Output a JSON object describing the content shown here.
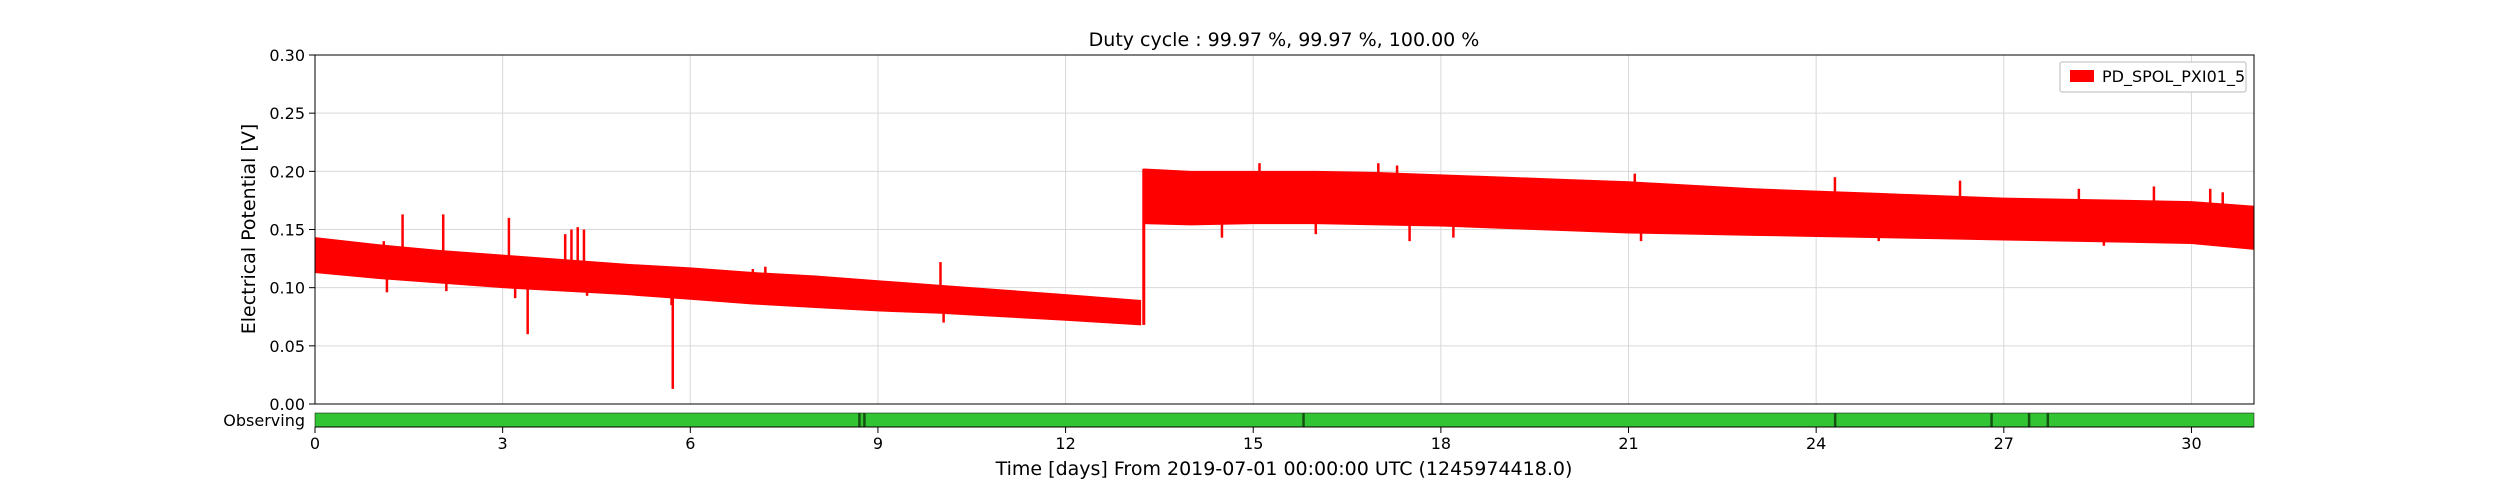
{
  "chart_data": {
    "type": "area",
    "title": "Duty cycle : 99.97 %, 99.97 %, 100.00 %",
    "xlabel": "Time [days] From 2019-07-01 00:00:00 UTC (1245974418.0)",
    "ylabel": "Electrical Potential [V]",
    "xlim": [
      0,
      31
    ],
    "ylim": [
      0,
      0.3
    ],
    "x_ticks": [
      0,
      3,
      6,
      9,
      12,
      15,
      18,
      21,
      24,
      27,
      30
    ],
    "x_tick_labels": [
      "0",
      "3",
      "6",
      "9",
      "12",
      "15",
      "18",
      "21",
      "24",
      "27",
      "30"
    ],
    "y_ticks": [
      0,
      0.05,
      0.1,
      0.15,
      0.2,
      0.25,
      0.3
    ],
    "y_tick_labels": [
      "0.00",
      "0.05",
      "0.10",
      "0.15",
      "0.20",
      "0.25",
      "0.30"
    ],
    "grid": true,
    "legend_position": "top-right",
    "series": [
      {
        "name": "PD_SPOL_PXI01_5",
        "color": "#ff0000",
        "x": [
          0,
          1,
          2,
          3,
          4,
          5,
          6,
          7,
          8,
          9,
          10,
          11,
          12,
          13.2,
          13.25,
          14,
          15,
          16,
          17,
          18,
          19,
          20,
          21,
          22,
          23,
          24,
          25,
          26,
          27,
          28,
          29,
          30,
          31
        ],
        "y_low": [
          0.113,
          0.108,
          0.104,
          0.1,
          0.097,
          0.094,
          0.09,
          0.086,
          0.083,
          0.08,
          0.078,
          0.075,
          0.072,
          0.068,
          0.155,
          0.154,
          0.155,
          0.155,
          0.154,
          0.153,
          0.151,
          0.149,
          0.147,
          0.146,
          0.145,
          0.144,
          0.143,
          0.142,
          0.141,
          0.14,
          0.139,
          0.138,
          0.133
        ],
        "y_high": [
          0.143,
          0.137,
          0.132,
          0.128,
          0.124,
          0.12,
          0.117,
          0.113,
          0.11,
          0.106,
          0.102,
          0.098,
          0.094,
          0.089,
          0.202,
          0.2,
          0.2,
          0.2,
          0.199,
          0.197,
          0.195,
          0.193,
          0.191,
          0.188,
          0.185,
          0.183,
          0.181,
          0.179,
          0.177,
          0.176,
          0.175,
          0.174,
          0.17
        ],
        "spikes": [
          {
            "x": 1.1,
            "y": 0.14
          },
          {
            "x": 1.15,
            "y": 0.096
          },
          {
            "x": 1.4,
            "y": 0.163
          },
          {
            "x": 2.05,
            "y": 0.163
          },
          {
            "x": 2.1,
            "y": 0.097
          },
          {
            "x": 3.1,
            "y": 0.16
          },
          {
            "x": 3.2,
            "y": 0.091
          },
          {
            "x": 3.4,
            "y": 0.06
          },
          {
            "x": 4.0,
            "y": 0.146
          },
          {
            "x": 4.1,
            "y": 0.15
          },
          {
            "x": 4.2,
            "y": 0.152
          },
          {
            "x": 4.3,
            "y": 0.15
          },
          {
            "x": 4.35,
            "y": 0.093
          },
          {
            "x": 5.7,
            "y": 0.085
          },
          {
            "x": 5.72,
            "y": 0.013
          },
          {
            "x": 6.1,
            "y": 0.098
          },
          {
            "x": 7.0,
            "y": 0.116
          },
          {
            "x": 7.2,
            "y": 0.118
          },
          {
            "x": 10.0,
            "y": 0.122
          },
          {
            "x": 10.05,
            "y": 0.07
          },
          {
            "x": 13.25,
            "y": 0.083
          },
          {
            "x": 14.5,
            "y": 0.143
          },
          {
            "x": 15.1,
            "y": 0.207
          },
          {
            "x": 16.0,
            "y": 0.146
          },
          {
            "x": 17.0,
            "y": 0.207
          },
          {
            "x": 17.3,
            "y": 0.205
          },
          {
            "x": 17.5,
            "y": 0.14
          },
          {
            "x": 18.2,
            "y": 0.143
          },
          {
            "x": 21.1,
            "y": 0.198
          },
          {
            "x": 21.2,
            "y": 0.14
          },
          {
            "x": 24.3,
            "y": 0.195
          },
          {
            "x": 25.0,
            "y": 0.14
          },
          {
            "x": 26.3,
            "y": 0.192
          },
          {
            "x": 28.2,
            "y": 0.185
          },
          {
            "x": 28.6,
            "y": 0.136
          },
          {
            "x": 29.4,
            "y": 0.187
          },
          {
            "x": 30.3,
            "y": 0.185
          },
          {
            "x": 30.5,
            "y": 0.182
          }
        ]
      }
    ],
    "state_bar": {
      "label": "Observing",
      "color": "#33c433",
      "gap_color": "#145214",
      "gaps": [
        8.7,
        8.78,
        15.8,
        24.3,
        26.8,
        27.4,
        27.7
      ]
    }
  }
}
